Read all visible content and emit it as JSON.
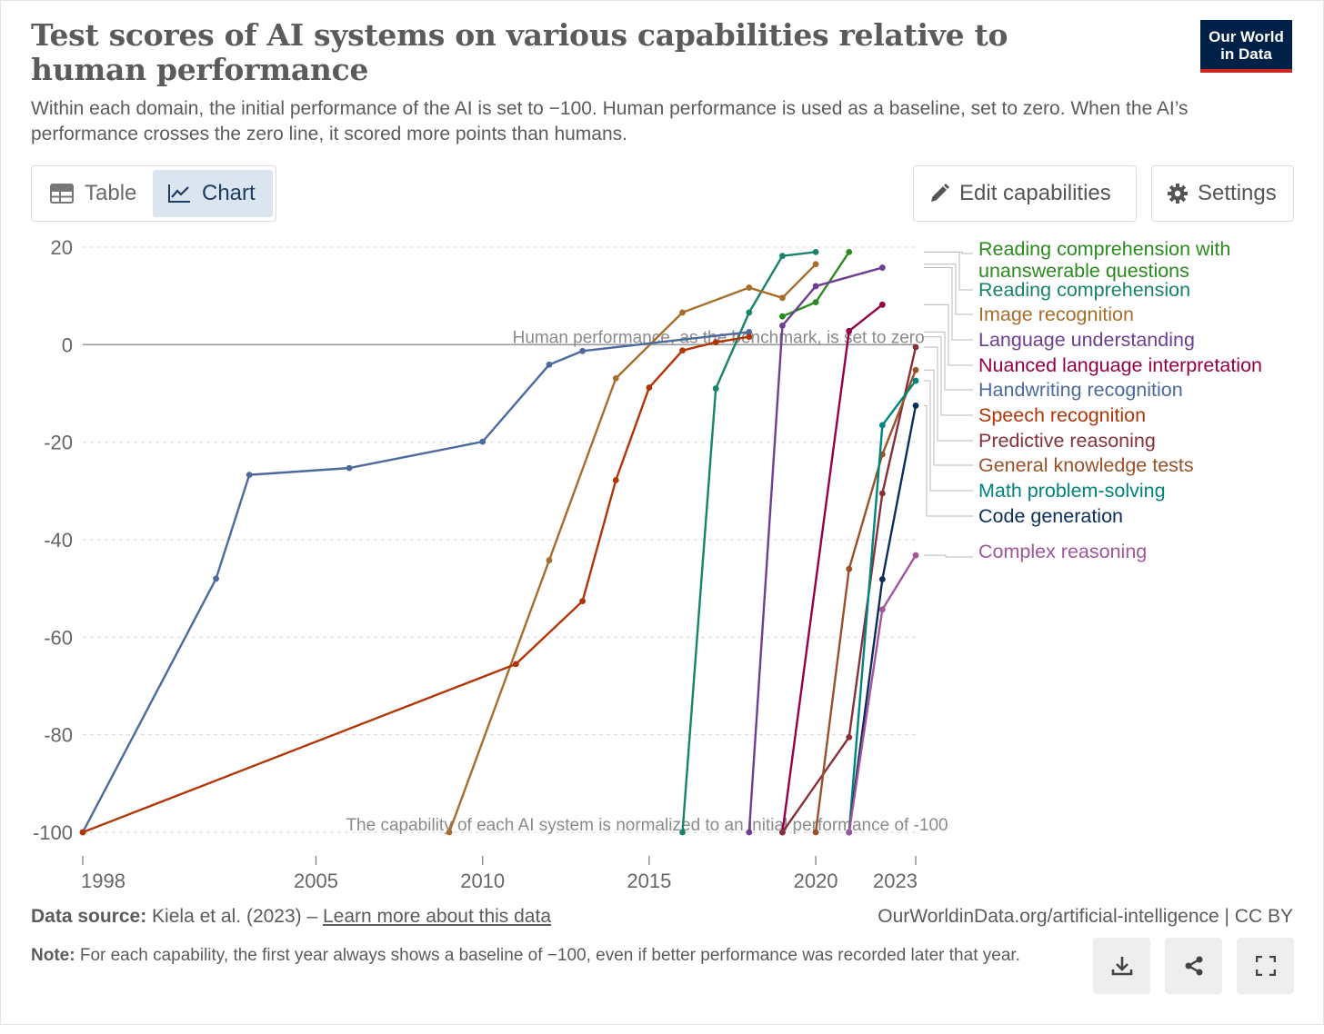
{
  "header": {
    "title": "Test scores of AI systems on various capabilities relative to human performance",
    "subtitle": "Within each domain, the initial performance of the AI is set to −100. Human performance is used as a baseline, set to zero. When the AI’s performance crosses the zero line, it scored more points than humans.",
    "logo_line1": "Our World",
    "logo_line2": "in Data"
  },
  "tabs": {
    "table_label": "Table",
    "chart_label": "Chart",
    "active": "chart"
  },
  "toolbar": {
    "edit_label": "Edit capabilities",
    "settings_label": "Settings"
  },
  "footer": {
    "source_prefix": "Data source:",
    "source_text": " Kiela et al. (2023) – ",
    "source_link": "Learn more about this data",
    "credit": "OurWorldinData.org/artificial-intelligence | CC BY",
    "note_prefix": "Note:",
    "note_text": " For each capability, the first year always shows a baseline of −100, even if better performance was recorded later that year."
  },
  "actions": [
    "download-icon",
    "share-icon",
    "fullscreen-icon"
  ],
  "chart_data": {
    "type": "line",
    "title": "Test scores of AI systems on various capabilities relative to human performance",
    "xlim": [
      1998,
      2023
    ],
    "ylim": [
      -100,
      20
    ],
    "x_ticks": [
      1998,
      2005,
      2010,
      2015,
      2020,
      2023
    ],
    "y_ticks": [
      20,
      0,
      -20,
      -40,
      -60,
      -80,
      -100
    ],
    "grid": "horizontal-dashed",
    "legend": "right-labels",
    "annotations": [
      {
        "text": "Human performance, as the benchmark, is set to zero",
        "x": 2010.9,
        "y": 0
      },
      {
        "text": "The capability of each AI system is normalized to an initial performance of -100",
        "x": 2005.9,
        "y": -100
      }
    ],
    "series": [
      {
        "name": "Reading comprehension with unanswerable questions",
        "color": "#2a8a1e",
        "points": [
          [
            2019,
            5.8
          ],
          [
            2020,
            8.7
          ],
          [
            2021,
            19
          ]
        ]
      },
      {
        "name": "Reading comprehension",
        "color": "#18836a",
        "points": [
          [
            2016,
            -100
          ],
          [
            2017,
            -9
          ],
          [
            2018,
            6.6
          ],
          [
            2019,
            18.2
          ],
          [
            2020,
            19
          ]
        ]
      },
      {
        "name": "Image recognition",
        "color": "#a56e2c",
        "points": [
          [
            2009,
            -100
          ],
          [
            2012,
            -44.2
          ],
          [
            2014,
            -6.9
          ],
          [
            2016,
            6.6
          ],
          [
            2018,
            11.7
          ],
          [
            2019,
            9.6
          ],
          [
            2020,
            16.5
          ]
        ]
      },
      {
        "name": "Language understanding",
        "color": "#6d3e91",
        "points": [
          [
            2018,
            -100
          ],
          [
            2019,
            3.9
          ],
          [
            2020,
            12
          ],
          [
            2022,
            15.8
          ]
        ]
      },
      {
        "name": "Nuanced language interpretation",
        "color": "#970046",
        "points": [
          [
            2019,
            -100
          ],
          [
            2021,
            2.8
          ],
          [
            2022,
            8.2
          ]
        ]
      },
      {
        "name": "Handwriting recognition",
        "color": "#4c6a9c",
        "points": [
          [
            1998,
            -100
          ],
          [
            2002,
            -48
          ],
          [
            2003,
            -26.7
          ],
          [
            2006,
            -25.3
          ],
          [
            2010,
            -19.9
          ],
          [
            2012,
            -4.1
          ],
          [
            2013,
            -1.3
          ],
          [
            2018,
            2.6
          ]
        ]
      },
      {
        "name": "Speech recognition",
        "color": "#b13507",
        "points": [
          [
            1998,
            -100
          ],
          [
            2011,
            -65.5
          ],
          [
            2013,
            -52.6
          ],
          [
            2014,
            -27.8
          ],
          [
            2015,
            -8.8
          ],
          [
            2016,
            -1.2
          ],
          [
            2017,
            0.5
          ],
          [
            2018,
            1.6
          ]
        ]
      },
      {
        "name": "Predictive reasoning",
        "color": "#883039",
        "points": [
          [
            2019,
            -100
          ],
          [
            2021,
            -80.5
          ],
          [
            2022,
            -30.5
          ],
          [
            2023,
            -0.5
          ]
        ]
      },
      {
        "name": "General knowledge tests",
        "color": "#9a5129",
        "points": [
          [
            2020,
            -100
          ],
          [
            2021,
            -46
          ],
          [
            2022,
            -22.5
          ],
          [
            2023,
            -5.2
          ]
        ]
      },
      {
        "name": "Math problem-solving",
        "color": "#00847e",
        "points": [
          [
            2021,
            -100
          ],
          [
            2022,
            -16.5
          ],
          [
            2023,
            -7.4
          ]
        ]
      },
      {
        "name": "Code generation",
        "color": "#0a2d5c",
        "points": [
          [
            2021,
            -100
          ],
          [
            2022,
            -48.1
          ],
          [
            2023,
            -12.5
          ]
        ]
      },
      {
        "name": "Complex reasoning",
        "color": "#a2559c",
        "points": [
          [
            2021,
            -100
          ],
          [
            2022,
            -54.3
          ],
          [
            2023,
            -43.2
          ]
        ]
      }
    ]
  }
}
